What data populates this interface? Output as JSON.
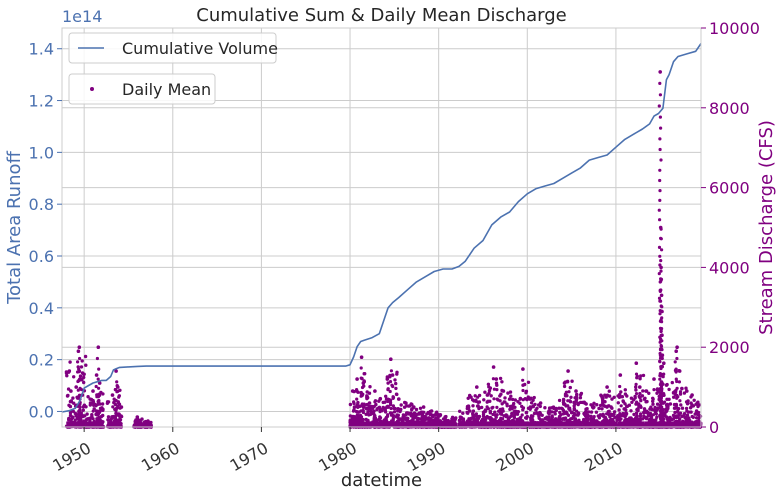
{
  "chart_data": {
    "type": "line",
    "title": "Cumulative Sum & Daily Mean Discharge",
    "xlabel": "datetime",
    "xlim": [
      1947.5,
      2019.6
    ],
    "x_ticks": [
      1950,
      1960,
      1970,
      1980,
      1990,
      2000,
      2010
    ],
    "x_tick_labels": [
      "1950",
      "1960",
      "1970",
      "1980",
      "1990",
      "2000",
      "2010"
    ],
    "grid": true,
    "y_left": {
      "label": "Total Area Runoff",
      "offset_text": "1e14",
      "lim": [
        -0.06,
        1.48
      ],
      "ticks": [
        0.0,
        0.2,
        0.4,
        0.6,
        0.8,
        1.0,
        1.2,
        1.4
      ],
      "tick_labels": [
        "0.0",
        "0.2",
        "0.4",
        "0.6",
        "0.8",
        "1.0",
        "1.2",
        "1.4"
      ],
      "color": "#4c72b0"
    },
    "y_right": {
      "label": "Stream Discharge (CFS)",
      "lim": [
        0,
        10000
      ],
      "ticks": [
        0,
        2000,
        4000,
        6000,
        8000,
        10000
      ],
      "tick_labels": [
        "0",
        "2000",
        "4000",
        "6000",
        "8000",
        "10000"
      ],
      "color": "#800080"
    },
    "legend": [
      {
        "label": "Cumulative Volume",
        "placement": "top-left"
      },
      {
        "label": "Daily Mean",
        "placement": "upper-left"
      }
    ],
    "series": [
      {
        "name": "Cumulative Volume",
        "axis": "left",
        "kind": "line",
        "color": "#4c72b0",
        "x": [
          1947.5,
          1948.3,
          1949.0,
          1949.5,
          1950.0,
          1950.5,
          1951.0,
          1951.5,
          1952.0,
          1952.5,
          1953.0,
          1953.3,
          1953.6,
          1954.0,
          1955.0,
          1956.0,
          1957.0,
          1960.0,
          1965.0,
          1970.0,
          1975.0,
          1979.5,
          1980.0,
          1980.4,
          1980.8,
          1981.2,
          1981.6,
          1982.5,
          1983.3,
          1983.8,
          1984.3,
          1984.8,
          1985.5,
          1986.5,
          1987.5,
          1988.5,
          1989.5,
          1990.5,
          1991.5,
          1992.3,
          1993.0,
          1994.0,
          1995.0,
          1996.0,
          1997.0,
          1998.0,
          1999.0,
          2000.0,
          2001.0,
          2002.0,
          2003.0,
          2004.0,
          2005.0,
          2006.0,
          2007.0,
          2008.0,
          2009.0,
          2010.0,
          2011.0,
          2012.0,
          2013.0,
          2013.8,
          2014.3,
          2014.8,
          2015.3,
          2015.7,
          2016.0,
          2016.5,
          2017.0,
          2018.0,
          2019.0,
          2019.6
        ],
        "y": [
          -0.002,
          0.003,
          0.012,
          0.04,
          0.09,
          0.1,
          0.11,
          0.115,
          0.12,
          0.12,
          0.135,
          0.16,
          0.165,
          0.17,
          0.172,
          0.174,
          0.175,
          0.175,
          0.175,
          0.175,
          0.175,
          0.175,
          0.18,
          0.21,
          0.25,
          0.27,
          0.275,
          0.285,
          0.3,
          0.35,
          0.4,
          0.42,
          0.44,
          0.47,
          0.5,
          0.52,
          0.54,
          0.55,
          0.55,
          0.56,
          0.58,
          0.63,
          0.66,
          0.72,
          0.75,
          0.77,
          0.81,
          0.84,
          0.86,
          0.87,
          0.88,
          0.9,
          0.92,
          0.94,
          0.97,
          0.98,
          0.99,
          1.02,
          1.05,
          1.07,
          1.09,
          1.11,
          1.14,
          1.15,
          1.17,
          1.28,
          1.3,
          1.35,
          1.37,
          1.38,
          1.39,
          1.42
        ]
      },
      {
        "name": "Daily Mean",
        "axis": "right",
        "kind": "scatter",
        "color": "#800080",
        "points": [
          [
            1948.5,
            900
          ],
          [
            1949.1,
            1000
          ],
          [
            1949.35,
            1900
          ],
          [
            1949.45,
            2000
          ],
          [
            1949.6,
            1200
          ],
          [
            1949.8,
            800
          ],
          [
            1951.0,
            900
          ],
          [
            1951.4,
            1300
          ],
          [
            1951.6,
            2000
          ],
          [
            1951.75,
            1100
          ],
          [
            1953.2,
            800
          ],
          [
            1953.6,
            1400
          ],
          [
            1953.8,
            1000
          ],
          [
            1954.2,
            500
          ],
          [
            1956.0,
            250
          ],
          [
            1957.2,
            150
          ],
          [
            1980.3,
            900
          ],
          [
            1980.5,
            500
          ],
          [
            1980.8,
            1200
          ],
          [
            1981.3,
            1750
          ],
          [
            1981.5,
            1100
          ],
          [
            1982.2,
            600
          ],
          [
            1982.8,
            900
          ],
          [
            1983.4,
            700
          ],
          [
            1984.2,
            1200
          ],
          [
            1984.6,
            1700
          ],
          [
            1984.8,
            1300
          ],
          [
            1985.5,
            700
          ],
          [
            1986.3,
            600
          ],
          [
            1987.2,
            500
          ],
          [
            1988.3,
            500
          ],
          [
            1989.2,
            400
          ],
          [
            1990.2,
            300
          ],
          [
            1991.5,
            200
          ],
          [
            1993.5,
            400
          ],
          [
            1994.3,
            1000
          ],
          [
            1995.5,
            800
          ],
          [
            1996.2,
            1500
          ],
          [
            1996.5,
            1200
          ],
          [
            1997.3,
            900
          ],
          [
            1998.0,
            700
          ],
          [
            1999.5,
            1450
          ],
          [
            2000.3,
            700
          ],
          [
            2001.5,
            600
          ],
          [
            2002.5,
            400
          ],
          [
            2004.2,
            1100
          ],
          [
            2004.6,
            1400
          ],
          [
            2005.5,
            900
          ],
          [
            2006.5,
            600
          ],
          [
            2007.5,
            500
          ],
          [
            2009.0,
            1000
          ],
          [
            2010.5,
            1300
          ],
          [
            2012.3,
            1600
          ],
          [
            2012.7,
            1000
          ],
          [
            2013.4,
            900
          ],
          [
            2014.3,
            1200
          ],
          [
            2015.0,
            8900
          ],
          [
            2015.05,
            5000
          ],
          [
            2015.1,
            4000
          ],
          [
            2015.12,
            3700
          ],
          [
            2015.15,
            3300
          ],
          [
            2015.2,
            2300
          ],
          [
            2015.25,
            1800
          ],
          [
            2015.4,
            1600
          ],
          [
            2016.8,
            1900
          ],
          [
            2016.9,
            2000
          ],
          [
            2017.2,
            1400
          ],
          [
            2018.0,
            900
          ],
          [
            2018.6,
            800
          ],
          [
            2019.2,
            600
          ]
        ],
        "clusters": [
          [
            1948.0,
            1950.2,
            1800
          ],
          [
            1950.2,
            1952.2,
            900
          ],
          [
            1952.6,
            1954.2,
            1100
          ],
          [
            1955.6,
            1956.6,
            200
          ],
          [
            1956.8,
            1957.6,
            150
          ],
          [
            1980.0,
            1981.1,
            1000
          ],
          [
            1981.1,
            1982.3,
            1400
          ],
          [
            1982.3,
            1983.3,
            700
          ],
          [
            1983.3,
            1984.2,
            800
          ],
          [
            1984.2,
            1985.3,
            1400
          ],
          [
            1985.3,
            1986.2,
            700
          ],
          [
            1986.2,
            1987.3,
            600
          ],
          [
            1987.3,
            1988.2,
            500
          ],
          [
            1988.2,
            1989.2,
            450
          ],
          [
            1989.2,
            1990.2,
            400
          ],
          [
            1990.2,
            1991.2,
            300
          ],
          [
            1991.2,
            1992.0,
            250
          ],
          [
            1992.3,
            1993.2,
            400
          ],
          [
            1993.2,
            1994.2,
            800
          ],
          [
            1994.2,
            1995.2,
            900
          ],
          [
            1995.2,
            1996.2,
            1100
          ],
          [
            1996.2,
            1997.2,
            1300
          ],
          [
            1997.2,
            1998.2,
            900
          ],
          [
            1998.2,
            1999.2,
            700
          ],
          [
            1999.2,
            2000.2,
            1200
          ],
          [
            2000.2,
            2001.2,
            800
          ],
          [
            2001.2,
            2002.2,
            600
          ],
          [
            2002.2,
            2003.2,
            500
          ],
          [
            2003.2,
            2004.2,
            700
          ],
          [
            2004.2,
            2005.2,
            1200
          ],
          [
            2005.2,
            2006.2,
            900
          ],
          [
            2006.2,
            2007.2,
            700
          ],
          [
            2007.2,
            2008.2,
            600
          ],
          [
            2008.2,
            2009.2,
            800
          ],
          [
            2009.2,
            2010.2,
            900
          ],
          [
            2010.2,
            2011.2,
            1000
          ],
          [
            2011.2,
            2012.2,
            800
          ],
          [
            2012.2,
            2013.2,
            1300
          ],
          [
            2013.2,
            2014.2,
            900
          ],
          [
            2014.2,
            2015.2,
            1000
          ],
          [
            2015.2,
            2016.2,
            1200
          ],
          [
            2016.2,
            2017.2,
            1500
          ],
          [
            2017.2,
            2018.2,
            1000
          ],
          [
            2018.2,
            2019.2,
            800
          ],
          [
            2019.2,
            2019.6,
            700
          ]
        ]
      }
    ]
  }
}
